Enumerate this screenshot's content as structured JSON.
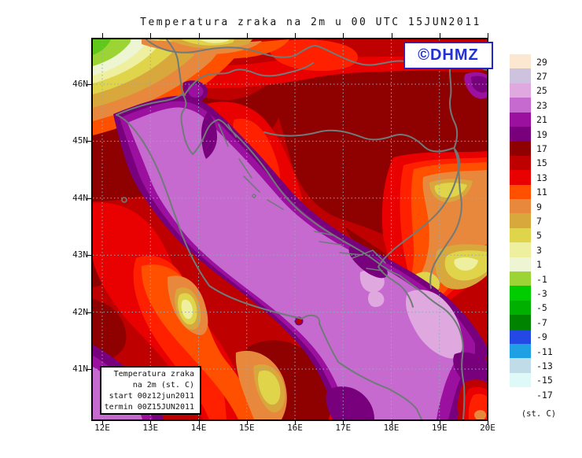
{
  "title": "Temperatura zraka na 2m u 00 UTC 15JUN2011",
  "watermark": {
    "label": "©DHMZ",
    "color": "#2230D8"
  },
  "info_box": {
    "lines": [
      "Temperatura zraka",
      "na 2m (st. C)",
      "start 00z12jun2011",
      "termin 00Z15JUN2011"
    ]
  },
  "axes": {
    "lon_labels": [
      "12E",
      "13E",
      "14E",
      "15E",
      "16E",
      "17E",
      "18E",
      "19E",
      "20E"
    ],
    "lat_labels": [
      "46N",
      "45N",
      "44N",
      "43N",
      "42N",
      "41N"
    ]
  },
  "legend": {
    "unit_label": "(st. C)",
    "entries": [
      {
        "label": "29",
        "color": "#FCE8D0"
      },
      {
        "label": "27",
        "color": "#CEC3DF"
      },
      {
        "label": "25",
        "color": "#DFA8DF"
      },
      {
        "label": "23",
        "color": "#C76ACF"
      },
      {
        "label": "21",
        "color": "#9C10A0"
      },
      {
        "label": "19",
        "color": "#78007C"
      },
      {
        "label": "17",
        "color": "#8F0000"
      },
      {
        "label": "15",
        "color": "#BE0000"
      },
      {
        "label": "13",
        "color": "#E90000"
      },
      {
        "label": "11",
        "color": "#FF5000"
      },
      {
        "label": "9",
        "color": "#E8883C"
      },
      {
        "label": "7",
        "color": "#D8A83C"
      },
      {
        "label": "5",
        "color": "#E0D44A"
      },
      {
        "label": "3",
        "color": "#EEF0A0"
      },
      {
        "label": "1",
        "color": "#EDF5D2"
      },
      {
        "label": "-1",
        "color": "#9CD435"
      },
      {
        "label": "-3",
        "color": "#00CC00"
      },
      {
        "label": "-5",
        "color": "#00B000"
      },
      {
        "label": "-7",
        "color": "#008400"
      },
      {
        "label": "-9",
        "color": "#2348E4"
      },
      {
        "label": "-11",
        "color": "#1FA0E4"
      },
      {
        "label": "-13",
        "color": "#BFDCE8"
      },
      {
        "label": "-15",
        "color": "#DFF8F8"
      },
      {
        "label": "-17",
        "color": "#FFFFFF"
      }
    ]
  }
}
